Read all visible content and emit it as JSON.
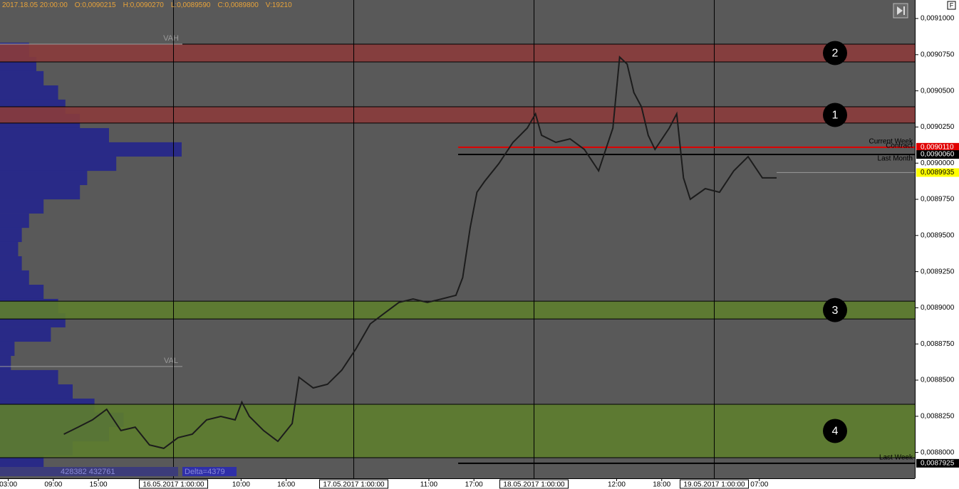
{
  "chart_data": {
    "type": "line",
    "header": {
      "time": "2017.18.05 20:00:00",
      "open": "O:0,0090215",
      "high": "H:0,0090270",
      "low": "L:0,0089590",
      "close": "C:0,0089800",
      "volume": "V:19210"
    },
    "ylim": [
      0.0087821,
      0.0091128
    ],
    "yticks": [
      {
        "value": 0.0091,
        "label": "0,0091000"
      },
      {
        "value": 0.009075,
        "label": "0,0090750"
      },
      {
        "value": 0.00905,
        "label": "0,0090500"
      },
      {
        "value": 0.009025,
        "label": "0,0090250"
      },
      {
        "value": 0.009,
        "label": "0,0090000"
      },
      {
        "value": 0.008975,
        "label": "0,0089750"
      },
      {
        "value": 0.00895,
        "label": "0,0089500"
      },
      {
        "value": 0.008925,
        "label": "0,0089250"
      },
      {
        "value": 0.0089,
        "label": "0,0089000"
      },
      {
        "value": 0.008875,
        "label": "0,0088750"
      },
      {
        "value": 0.00885,
        "label": "0,0088500"
      },
      {
        "value": 0.008825,
        "label": "0,0088250"
      },
      {
        "value": 0.0088,
        "label": "0,0088000"
      }
    ],
    "xlim": [
      -1.1,
      120.7
    ],
    "xticks": [
      {
        "value": 0,
        "label": "03:00"
      },
      {
        "value": 6,
        "label": "09:00"
      },
      {
        "value": 12,
        "label": "15:00"
      },
      {
        "value": 31,
        "label": "10:00"
      },
      {
        "value": 37,
        "label": "16:00"
      },
      {
        "value": 56,
        "label": "11:00"
      },
      {
        "value": 62,
        "label": "17:00"
      },
      {
        "value": 81,
        "label": "12:00"
      },
      {
        "value": 87,
        "label": "18:00"
      },
      {
        "value": 100,
        "label": "07:00"
      }
    ],
    "date_ticks": [
      {
        "value": 22,
        "label": "16.05.2017 1:00:00"
      },
      {
        "value": 46,
        "label": "17.05.2017 1:00:00"
      },
      {
        "value": 70,
        "label": "18.05.2017 1:00:00"
      },
      {
        "value": 94,
        "label": "19.05.2017 1:00:00"
      }
    ],
    "x": [
      7.4,
      9.3,
      11.2,
      13.1,
      15.0,
      16.9,
      18.8,
      20.7,
      22.6,
      24.5,
      26.4,
      28.3,
      30.2,
      31.1,
      32.1,
      34.0,
      35.9,
      37.8,
      38.7,
      40.6,
      42.5,
      44.4,
      46.3,
      48.2,
      50.1,
      52.0,
      53.9,
      55.8,
      57.7,
      59.6,
      60.5,
      61.5,
      62.4,
      63.4,
      65.3,
      67.2,
      69.1,
      70.2,
      71.0,
      72.9,
      74.8,
      76.7,
      78.6,
      80.5,
      81.4,
      82.4,
      83.3,
      84.3,
      85.2,
      86.1,
      88.0,
      89.0,
      89.9,
      90.8,
      92.8,
      94.7,
      96.6,
      98.5,
      100.4,
      102.3
    ],
    "series": [
      {
        "color": "#1c1c1c",
        "values": [
          0.0088126,
          0.0088175,
          0.0088225,
          0.0088298,
          0.0088151,
          0.0088175,
          0.0088052,
          0.0088028,
          0.0088102,
          0.0088126,
          0.0088225,
          0.0088249,
          0.0088225,
          0.0088348,
          0.0088249,
          0.0088151,
          0.0088077,
          0.00882,
          0.008852,
          0.0088446,
          0.0088471,
          0.0088569,
          0.0088717,
          0.0088889,
          0.0088963,
          0.0089037,
          0.0089061,
          0.0089037,
          0.0089061,
          0.0089086,
          0.0089209,
          0.0089553,
          0.0089799,
          0.0089873,
          0.0089996,
          0.0090144,
          0.0090242,
          0.0090341,
          0.0090193,
          0.0090144,
          0.0090168,
          0.0090095,
          0.0089947,
          0.0090242,
          0.0090734,
          0.0090685,
          0.0090488,
          0.009039,
          0.0090193,
          0.0090095,
          0.0090242,
          0.0090341,
          0.0089898,
          0.008975,
          0.0089824,
          0.0089799,
          0.0089947,
          0.0090045,
          0.0089898,
          0.0089898
        ]
      }
    ],
    "zones": [
      {
        "label": "2",
        "low": 0.00907,
        "high": 0.0090823,
        "color": "#8a3b3b"
      },
      {
        "label": "1",
        "low": 0.0090277,
        "high": 0.009039,
        "color": "#8a3b3b"
      },
      {
        "label": "3",
        "low": 0.0088923,
        "high": 0.0089046,
        "color": "#5d7d2e"
      },
      {
        "label": "4",
        "low": 0.0087964,
        "high": 0.0088333,
        "color": "#5d7d2e"
      }
    ],
    "levels": [
      {
        "names": [
          "Current Week",
          "Contract"
        ],
        "value": 0.009011,
        "label": "0,0090110",
        "color": "#e00000",
        "from": 59.9
      },
      {
        "names": [
          "Last Month"
        ],
        "value": 0.009006,
        "label": "0,0090060",
        "color": "#000000",
        "from": 59.9
      },
      {
        "names": [
          "Last Week"
        ],
        "value": 0.0087925,
        "label": "0,0087925",
        "color": "#000000",
        "from": 59.9
      }
    ],
    "last_price": {
      "value": 0.0089935,
      "label": "0,0089935",
      "color": "#ffff00",
      "from": 102.3
    },
    "value_area": [
      {
        "name": "VAH",
        "value": 0.0090823
      },
      {
        "name": "VAL",
        "value": 0.0088594
      }
    ],
    "volume_profile": {
      "color": "#27288a",
      "prices": [
        0.0090784,
        0.0090685,
        0.0090587,
        0.0090488,
        0.009039,
        0.0090291,
        0.0090193,
        0.0090095,
        0.0089996,
        0.0089898,
        0.0089799,
        0.0089701,
        0.0089602,
        0.0089504,
        0.0089406,
        0.0089307,
        0.0089209,
        0.008911,
        0.0089012,
        0.0088914,
        0.0088815,
        0.0088717,
        0.0088618,
        0.008852,
        0.0088421,
        0.0088323,
        0.0088225,
        0.0088126,
        0.0088028,
        0.0087929
      ],
      "volumes": [
        40,
        50,
        60,
        80,
        90,
        110,
        150,
        250,
        160,
        120,
        110,
        60,
        40,
        30,
        25,
        30,
        40,
        60,
        80,
        90,
        70,
        20,
        15,
        80,
        100,
        130,
        170,
        150,
        100,
        60
      ],
      "totals": "428382 432761",
      "delta": "Delta=4379"
    }
  }
}
